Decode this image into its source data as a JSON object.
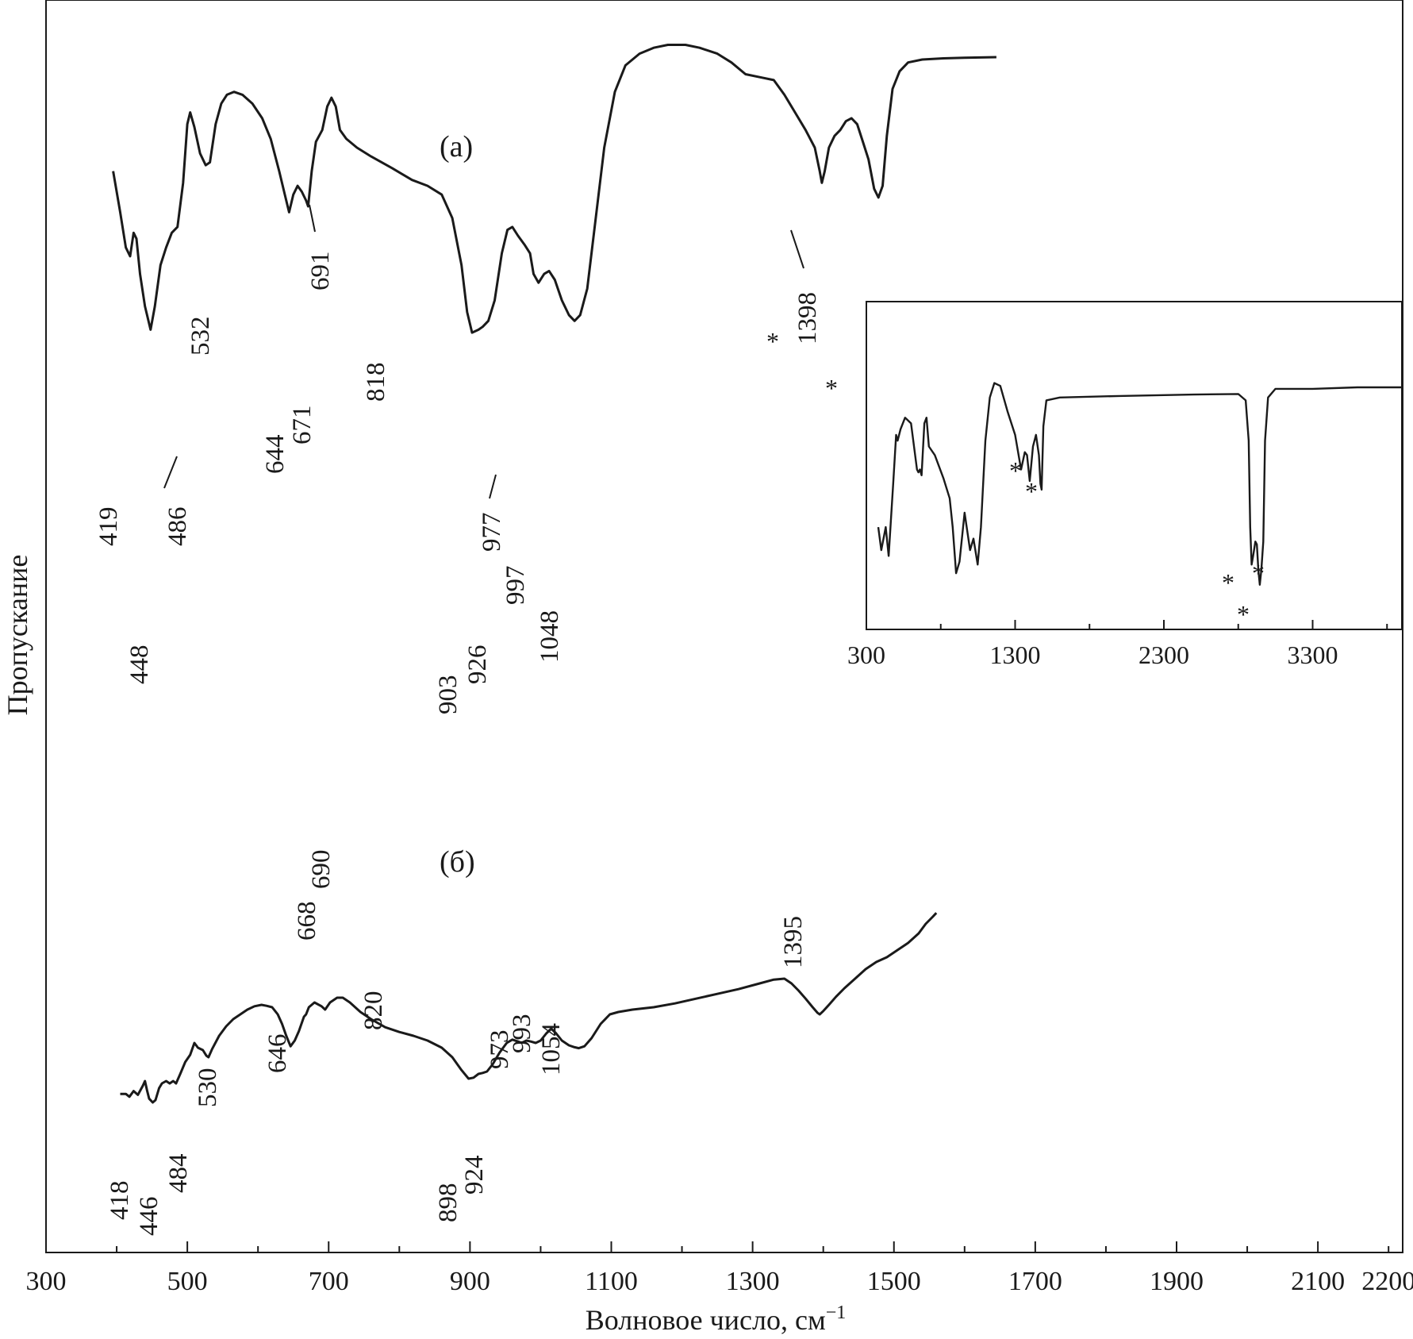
{
  "chart_data": {
    "type": "line",
    "title": "",
    "xlabel": "Волновое число, см",
    "xlabel_sup": "−1",
    "ylabel": "Пропускание",
    "xlim": [
      300,
      2200
    ],
    "x_ticks": [
      "300",
      "500",
      "700",
      "900",
      "1100",
      "1300",
      "1500",
      "1700",
      "1900",
      "2100",
      "2200"
    ],
    "series": [
      {
        "name": "(а)",
        "color": "#1a1a1a",
        "points": [
          [
            395,
            0.76
          ],
          [
            405,
            0.69
          ],
          [
            413,
            0.63
          ],
          [
            419,
            0.615
          ],
          [
            424,
            0.655
          ],
          [
            428,
            0.645
          ],
          [
            433,
            0.585
          ],
          [
            440,
            0.53
          ],
          [
            448,
            0.49
          ],
          [
            454,
            0.53
          ],
          [
            462,
            0.6
          ],
          [
            470,
            0.63
          ],
          [
            478,
            0.655
          ],
          [
            486,
            0.665
          ],
          [
            494,
            0.74
          ],
          [
            500,
            0.84
          ],
          [
            504,
            0.86
          ],
          [
            510,
            0.835
          ],
          [
            518,
            0.79
          ],
          [
            526,
            0.77
          ],
          [
            532,
            0.775
          ],
          [
            540,
            0.84
          ],
          [
            548,
            0.875
          ],
          [
            556,
            0.89
          ],
          [
            566,
            0.895
          ],
          [
            578,
            0.89
          ],
          [
            592,
            0.875
          ],
          [
            606,
            0.85
          ],
          [
            618,
            0.815
          ],
          [
            630,
            0.76
          ],
          [
            638,
            0.72
          ],
          [
            644,
            0.69
          ],
          [
            650,
            0.72
          ],
          [
            656,
            0.735
          ],
          [
            662,
            0.725
          ],
          [
            668,
            0.71
          ],
          [
            671,
            0.7
          ],
          [
            676,
            0.76
          ],
          [
            682,
            0.81
          ],
          [
            691,
            0.83
          ],
          [
            698,
            0.87
          ],
          [
            704,
            0.885
          ],
          [
            710,
            0.87
          ],
          [
            716,
            0.83
          ],
          [
            725,
            0.815
          ],
          [
            740,
            0.8
          ],
          [
            760,
            0.785
          ],
          [
            790,
            0.765
          ],
          [
            818,
            0.745
          ],
          [
            840,
            0.735
          ],
          [
            860,
            0.72
          ],
          [
            875,
            0.68
          ],
          [
            888,
            0.6
          ],
          [
            896,
            0.52
          ],
          [
            903,
            0.485
          ],
          [
            912,
            0.49
          ],
          [
            918,
            0.495
          ],
          [
            926,
            0.505
          ],
          [
            935,
            0.54
          ],
          [
            945,
            0.62
          ],
          [
            953,
            0.66
          ],
          [
            960,
            0.665
          ],
          [
            968,
            0.65
          ],
          [
            977,
            0.635
          ],
          [
            985,
            0.62
          ],
          [
            990,
            0.585
          ],
          [
            997,
            0.57
          ],
          [
            1005,
            0.585
          ],
          [
            1012,
            0.59
          ],
          [
            1020,
            0.575
          ],
          [
            1030,
            0.54
          ],
          [
            1040,
            0.515
          ],
          [
            1048,
            0.505
          ],
          [
            1056,
            0.515
          ],
          [
            1066,
            0.56
          ],
          [
            1078,
            0.68
          ],
          [
            1090,
            0.8
          ],
          [
            1105,
            0.895
          ],
          [
            1120,
            0.94
          ],
          [
            1140,
            0.96
          ],
          [
            1160,
            0.97
          ],
          [
            1180,
            0.975
          ],
          [
            1205,
            0.975
          ],
          [
            1225,
            0.97
          ],
          [
            1250,
            0.96
          ],
          [
            1270,
            0.945
          ],
          [
            1290,
            0.925
          ],
          [
            1310,
            0.92
          ],
          [
            1330,
            0.915
          ],
          [
            1345,
            0.89
          ],
          [
            1360,
            0.86
          ],
          [
            1375,
            0.83
          ],
          [
            1388,
            0.8
          ],
          [
            1395,
            0.76
          ],
          [
            1398,
            0.74
          ],
          [
            1402,
            0.76
          ],
          [
            1408,
            0.8
          ],
          [
            1416,
            0.82
          ],
          [
            1424,
            0.83
          ],
          [
            1432,
            0.845
          ],
          [
            1440,
            0.85
          ],
          [
            1448,
            0.84
          ],
          [
            1456,
            0.81
          ],
          [
            1464,
            0.78
          ],
          [
            1472,
            0.73
          ],
          [
            1478,
            0.715
          ],
          [
            1484,
            0.735
          ],
          [
            1490,
            0.82
          ],
          [
            1498,
            0.9
          ],
          [
            1508,
            0.93
          ],
          [
            1520,
            0.945
          ],
          [
            1540,
            0.95
          ],
          [
            1570,
            0.952
          ],
          [
            1600,
            0.953
          ],
          [
            1645,
            0.954
          ]
        ]
      },
      {
        "name": "(б)",
        "color": "#1a1a1a",
        "points": [
          [
            405,
            0.178
          ],
          [
            413,
            0.178
          ],
          [
            418,
            0.172
          ],
          [
            424,
            0.184
          ],
          [
            430,
            0.176
          ],
          [
            437,
            0.195
          ],
          [
            440,
            0.205
          ],
          [
            443,
            0.185
          ],
          [
            446,
            0.168
          ],
          [
            451,
            0.16
          ],
          [
            455,
            0.165
          ],
          [
            460,
            0.19
          ],
          [
            464,
            0.2
          ],
          [
            470,
            0.205
          ],
          [
            475,
            0.2
          ],
          [
            480,
            0.205
          ],
          [
            484,
            0.2
          ],
          [
            490,
            0.22
          ],
          [
            497,
            0.245
          ],
          [
            504,
            0.26
          ],
          [
            510,
            0.285
          ],
          [
            515,
            0.275
          ],
          [
            522,
            0.27
          ],
          [
            527,
            0.258
          ],
          [
            530,
            0.255
          ],
          [
            535,
            0.272
          ],
          [
            545,
            0.3
          ],
          [
            555,
            0.32
          ],
          [
            565,
            0.335
          ],
          [
            575,
            0.345
          ],
          [
            585,
            0.355
          ],
          [
            595,
            0.362
          ],
          [
            605,
            0.365
          ],
          [
            612,
            0.363
          ],
          [
            620,
            0.36
          ],
          [
            628,
            0.345
          ],
          [
            634,
            0.325
          ],
          [
            640,
            0.3
          ],
          [
            646,
            0.278
          ],
          [
            652,
            0.29
          ],
          [
            658,
            0.31
          ],
          [
            665,
            0.34
          ],
          [
            668,
            0.345
          ],
          [
            672,
            0.36
          ],
          [
            680,
            0.37
          ],
          [
            690,
            0.362
          ],
          [
            695,
            0.355
          ],
          [
            702,
            0.37
          ],
          [
            712,
            0.38
          ],
          [
            720,
            0.38
          ],
          [
            730,
            0.37
          ],
          [
            745,
            0.35
          ],
          [
            760,
            0.335
          ],
          [
            780,
            0.318
          ],
          [
            800,
            0.308
          ],
          [
            820,
            0.3
          ],
          [
            840,
            0.29
          ],
          [
            860,
            0.275
          ],
          [
            875,
            0.255
          ],
          [
            888,
            0.228
          ],
          [
            898,
            0.21
          ],
          [
            905,
            0.212
          ],
          [
            912,
            0.22
          ],
          [
            918,
            0.222
          ],
          [
            924,
            0.225
          ],
          [
            932,
            0.24
          ],
          [
            942,
            0.265
          ],
          [
            952,
            0.285
          ],
          [
            960,
            0.292
          ],
          [
            968,
            0.288
          ],
          [
            973,
            0.285
          ],
          [
            980,
            0.29
          ],
          [
            986,
            0.288
          ],
          [
            993,
            0.285
          ],
          [
            1000,
            0.29
          ],
          [
            1008,
            0.305
          ],
          [
            1015,
            0.315
          ],
          [
            1022,
            0.305
          ],
          [
            1030,
            0.29
          ],
          [
            1040,
            0.28
          ],
          [
            1048,
            0.276
          ],
          [
            1054,
            0.274
          ],
          [
            1062,
            0.278
          ],
          [
            1072,
            0.295
          ],
          [
            1085,
            0.325
          ],
          [
            1098,
            0.345
          ],
          [
            1110,
            0.35
          ],
          [
            1130,
            0.355
          ],
          [
            1160,
            0.36
          ],
          [
            1190,
            0.368
          ],
          [
            1220,
            0.378
          ],
          [
            1250,
            0.388
          ],
          [
            1280,
            0.398
          ],
          [
            1310,
            0.41
          ],
          [
            1330,
            0.418
          ],
          [
            1345,
            0.42
          ],
          [
            1355,
            0.41
          ],
          [
            1365,
            0.395
          ],
          [
            1375,
            0.378
          ],
          [
            1385,
            0.36
          ],
          [
            1392,
            0.348
          ],
          [
            1395,
            0.345
          ],
          [
            1400,
            0.352
          ],
          [
            1408,
            0.365
          ],
          [
            1418,
            0.382
          ],
          [
            1430,
            0.4
          ],
          [
            1445,
            0.42
          ],
          [
            1460,
            0.44
          ],
          [
            1475,
            0.455
          ],
          [
            1490,
            0.465
          ],
          [
            1505,
            0.48
          ],
          [
            1520,
            0.495
          ],
          [
            1535,
            0.515
          ],
          [
            1545,
            0.535
          ],
          [
            1555,
            0.55
          ],
          [
            1560,
            0.558
          ]
        ]
      }
    ],
    "peak_labels_a": [
      "419",
      "448",
      "486",
      "532",
      "644",
      "671",
      "691",
      "818",
      "903",
      "926",
      "977",
      "997",
      "1048",
      "1398"
    ],
    "peak_labels_b": [
      "418",
      "446",
      "484",
      "530",
      "646",
      "668",
      "690",
      "820",
      "898",
      "924",
      "973",
      "993",
      "1054",
      "1395"
    ],
    "panel_labels": [
      "(а)",
      "(б)"
    ],
    "asterisk": "*",
    "inset": {
      "x_ticks": [
        "300",
        "1300",
        "2300",
        "3300"
      ],
      "xlim": [
        300,
        3900
      ],
      "points": [
        [
          380,
          0.3
        ],
        [
          400,
          0.22
        ],
        [
          430,
          0.3
        ],
        [
          450,
          0.2
        ],
        [
          480,
          0.45
        ],
        [
          500,
          0.62
        ],
        [
          510,
          0.6
        ],
        [
          530,
          0.64
        ],
        [
          560,
          0.68
        ],
        [
          600,
          0.66
        ],
        [
          640,
          0.5
        ],
        [
          650,
          0.49
        ],
        [
          660,
          0.5
        ],
        [
          671,
          0.48
        ],
        [
          690,
          0.66
        ],
        [
          704,
          0.68
        ],
        [
          720,
          0.58
        ],
        [
          760,
          0.55
        ],
        [
          818,
          0.47
        ],
        [
          860,
          0.4
        ],
        [
          880,
          0.3
        ],
        [
          903,
          0.14
        ],
        [
          926,
          0.18
        ],
        [
          960,
          0.35
        ],
        [
          997,
          0.22
        ],
        [
          1020,
          0.26
        ],
        [
          1048,
          0.17
        ],
        [
          1070,
          0.3
        ],
        [
          1100,
          0.6
        ],
        [
          1130,
          0.75
        ],
        [
          1160,
          0.8
        ],
        [
          1200,
          0.79
        ],
        [
          1250,
          0.7
        ],
        [
          1300,
          0.62
        ],
        [
          1340,
          0.5
        ],
        [
          1365,
          0.56
        ],
        [
          1380,
          0.55
        ],
        [
          1398,
          0.46
        ],
        [
          1420,
          0.58
        ],
        [
          1440,
          0.62
        ],
        [
          1460,
          0.55
        ],
        [
          1470,
          0.45
        ],
        [
          1478,
          0.43
        ],
        [
          1490,
          0.65
        ],
        [
          1510,
          0.74
        ],
        [
          1600,
          0.75
        ],
        [
          2000,
          0.755
        ],
        [
          2500,
          0.76
        ],
        [
          2800,
          0.762
        ],
        [
          2850,
          0.74
        ],
        [
          2870,
          0.6
        ],
        [
          2880,
          0.3
        ],
        [
          2890,
          0.17
        ],
        [
          2900,
          0.2
        ],
        [
          2915,
          0.25
        ],
        [
          2925,
          0.24
        ],
        [
          2935,
          0.15
        ],
        [
          2945,
          0.1
        ],
        [
          2955,
          0.15
        ],
        [
          2968,
          0.25
        ],
        [
          2980,
          0.6
        ],
        [
          3000,
          0.75
        ],
        [
          3050,
          0.78
        ],
        [
          3300,
          0.78
        ],
        [
          3600,
          0.785
        ],
        [
          3900,
          0.785
        ]
      ]
    }
  }
}
